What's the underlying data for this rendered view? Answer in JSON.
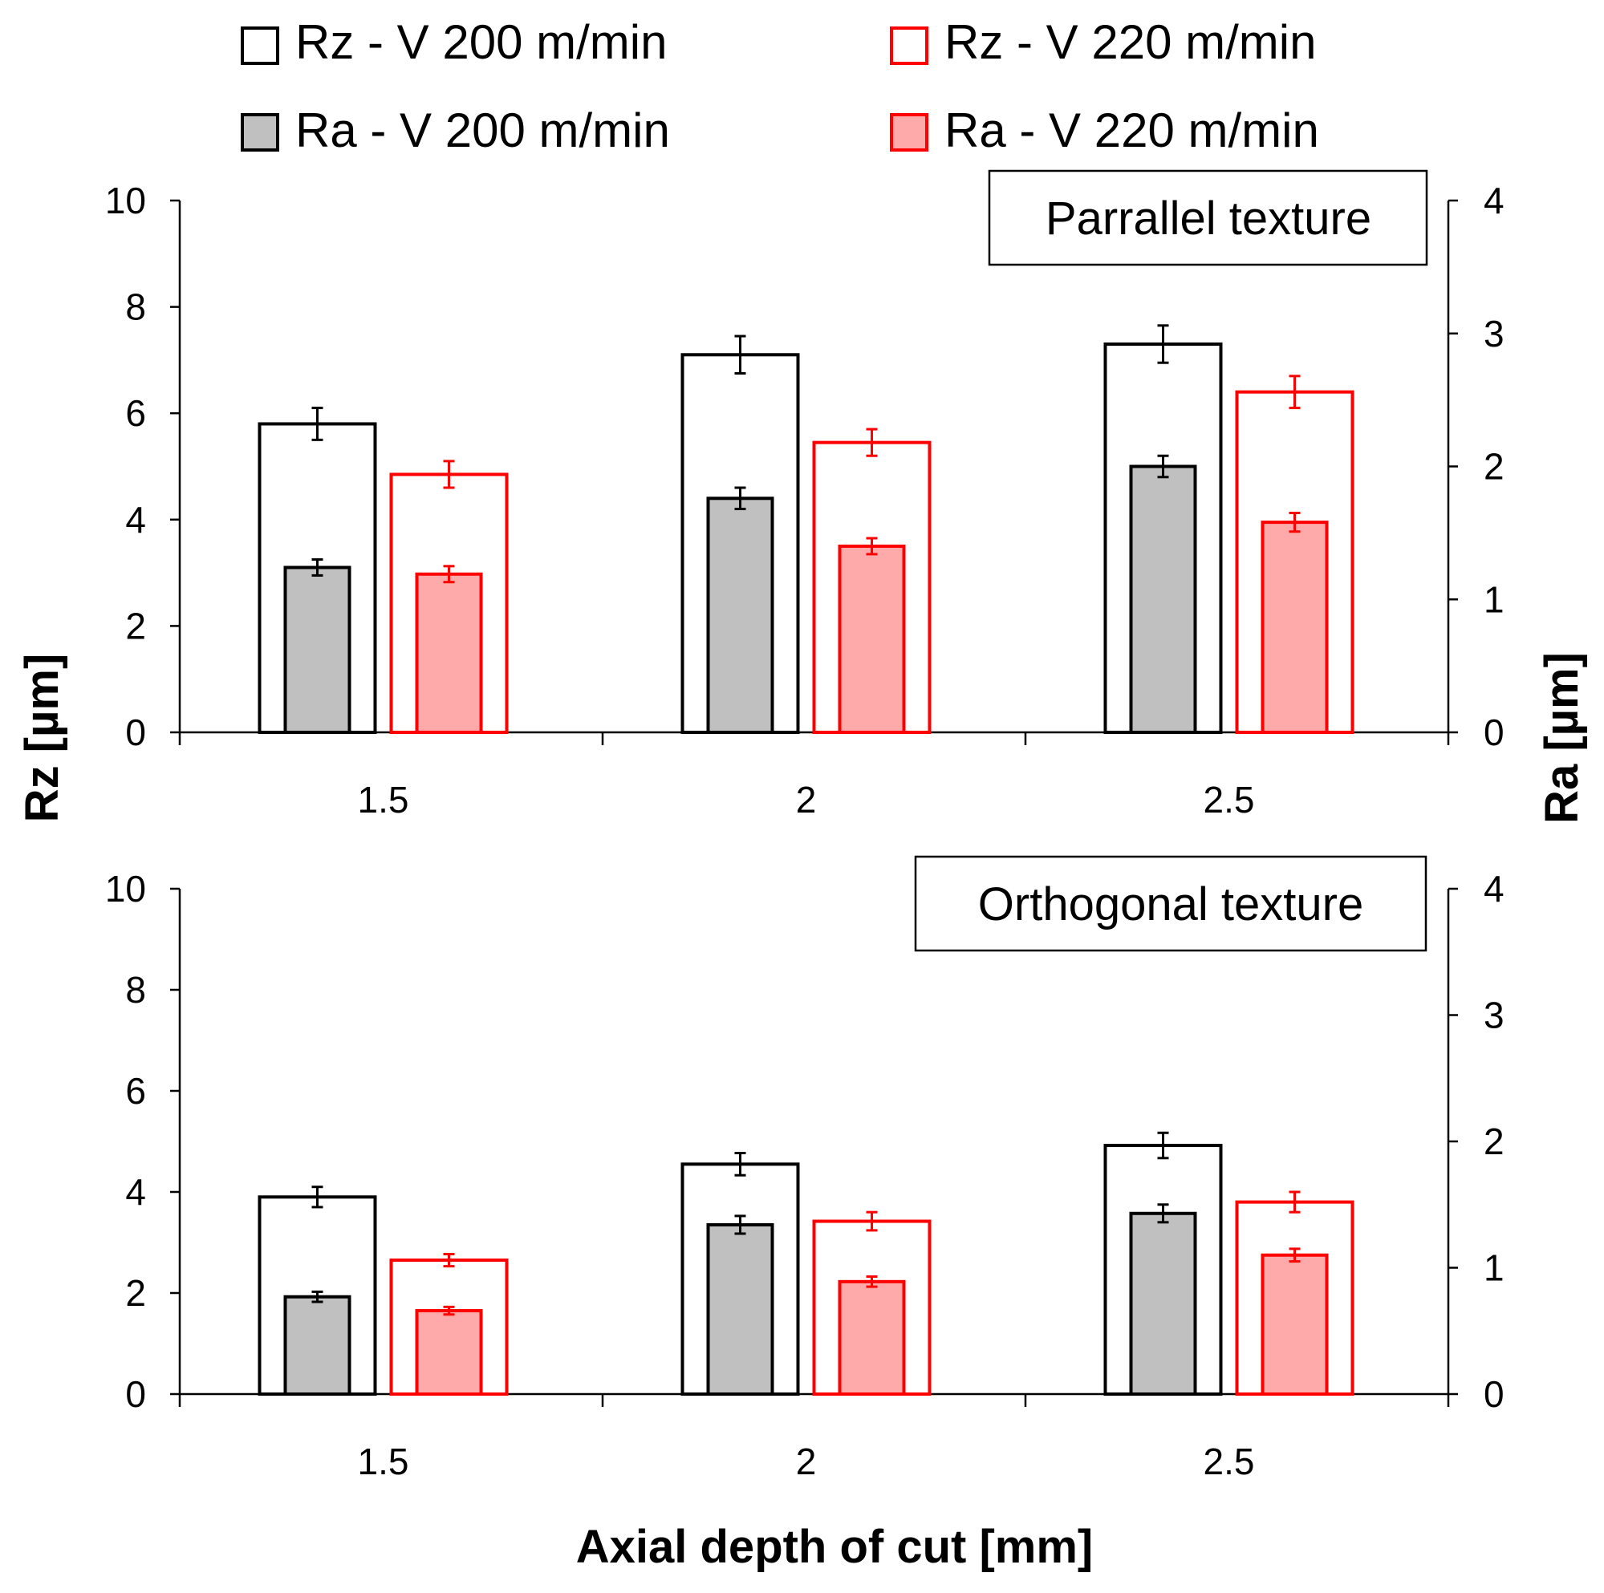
{
  "chart_data": {
    "type": "bar",
    "xlabel": "Axial depth of cut [mm]",
    "ylabel_left": "Rz [µm]",
    "ylabel_right": "Ra [µm]",
    "categories": [
      "1.5",
      "2",
      "2.5"
    ],
    "left_axis": {
      "ylim": [
        0,
        10
      ],
      "ticks": [
        "0",
        "2",
        "4",
        "6",
        "8",
        "10"
      ]
    },
    "right_axis": {
      "ylim": [
        0,
        4
      ],
      "ticks": [
        "0",
        "1",
        "2",
        "3",
        "4"
      ]
    },
    "legend": [
      {
        "name": "Rz - V 200 m/min",
        "style": "outline",
        "color": "#000000"
      },
      {
        "name": "Rz - V 220 m/min",
        "style": "outline",
        "color": "#ff0000"
      },
      {
        "name": "Ra - V 200 m/min",
        "style": "filled",
        "color": "#000000",
        "fill": "#c0c0c0"
      },
      {
        "name": "Ra - V 220 m/min",
        "style": "filled",
        "color": "#ff0000",
        "fill": "#ffaaaa"
      }
    ],
    "panels": [
      {
        "label": "Parrallel texture",
        "series": [
          {
            "name": "Rz - V 200 m/min",
            "axis": "left",
            "values": [
              5.8,
              7.1,
              7.3
            ],
            "errors": [
              0.3,
              0.35,
              0.35
            ]
          },
          {
            "name": "Rz - V 220 m/min",
            "axis": "left",
            "values": [
              4.85,
              5.45,
              6.4
            ],
            "errors": [
              0.25,
              0.25,
              0.3
            ]
          },
          {
            "name": "Ra - V 200 m/min",
            "axis": "right",
            "values": [
              1.24,
              1.76,
              2.0
            ],
            "errors": [
              0.06,
              0.08,
              0.08
            ]
          },
          {
            "name": "Ra - V 220 m/min",
            "axis": "right",
            "values": [
              1.19,
              1.4,
              1.58
            ],
            "errors": [
              0.06,
              0.06,
              0.07
            ]
          }
        ]
      },
      {
        "label": "Orthogonal texture",
        "series": [
          {
            "name": "Rz - V 200 m/min",
            "axis": "left",
            "values": [
              3.9,
              4.55,
              4.92
            ],
            "errors": [
              0.2,
              0.22,
              0.25
            ]
          },
          {
            "name": "Rz - V 220 m/min",
            "axis": "left",
            "values": [
              2.65,
              3.42,
              3.8
            ],
            "errors": [
              0.12,
              0.18,
              0.2
            ]
          },
          {
            "name": "Ra - V 200 m/min",
            "axis": "right",
            "values": [
              0.77,
              1.34,
              1.43
            ],
            "errors": [
              0.04,
              0.07,
              0.07
            ]
          },
          {
            "name": "Ra - V 220 m/min",
            "axis": "right",
            "values": [
              0.66,
              0.89,
              1.1
            ],
            "errors": [
              0.03,
              0.04,
              0.05
            ]
          }
        ]
      }
    ]
  }
}
